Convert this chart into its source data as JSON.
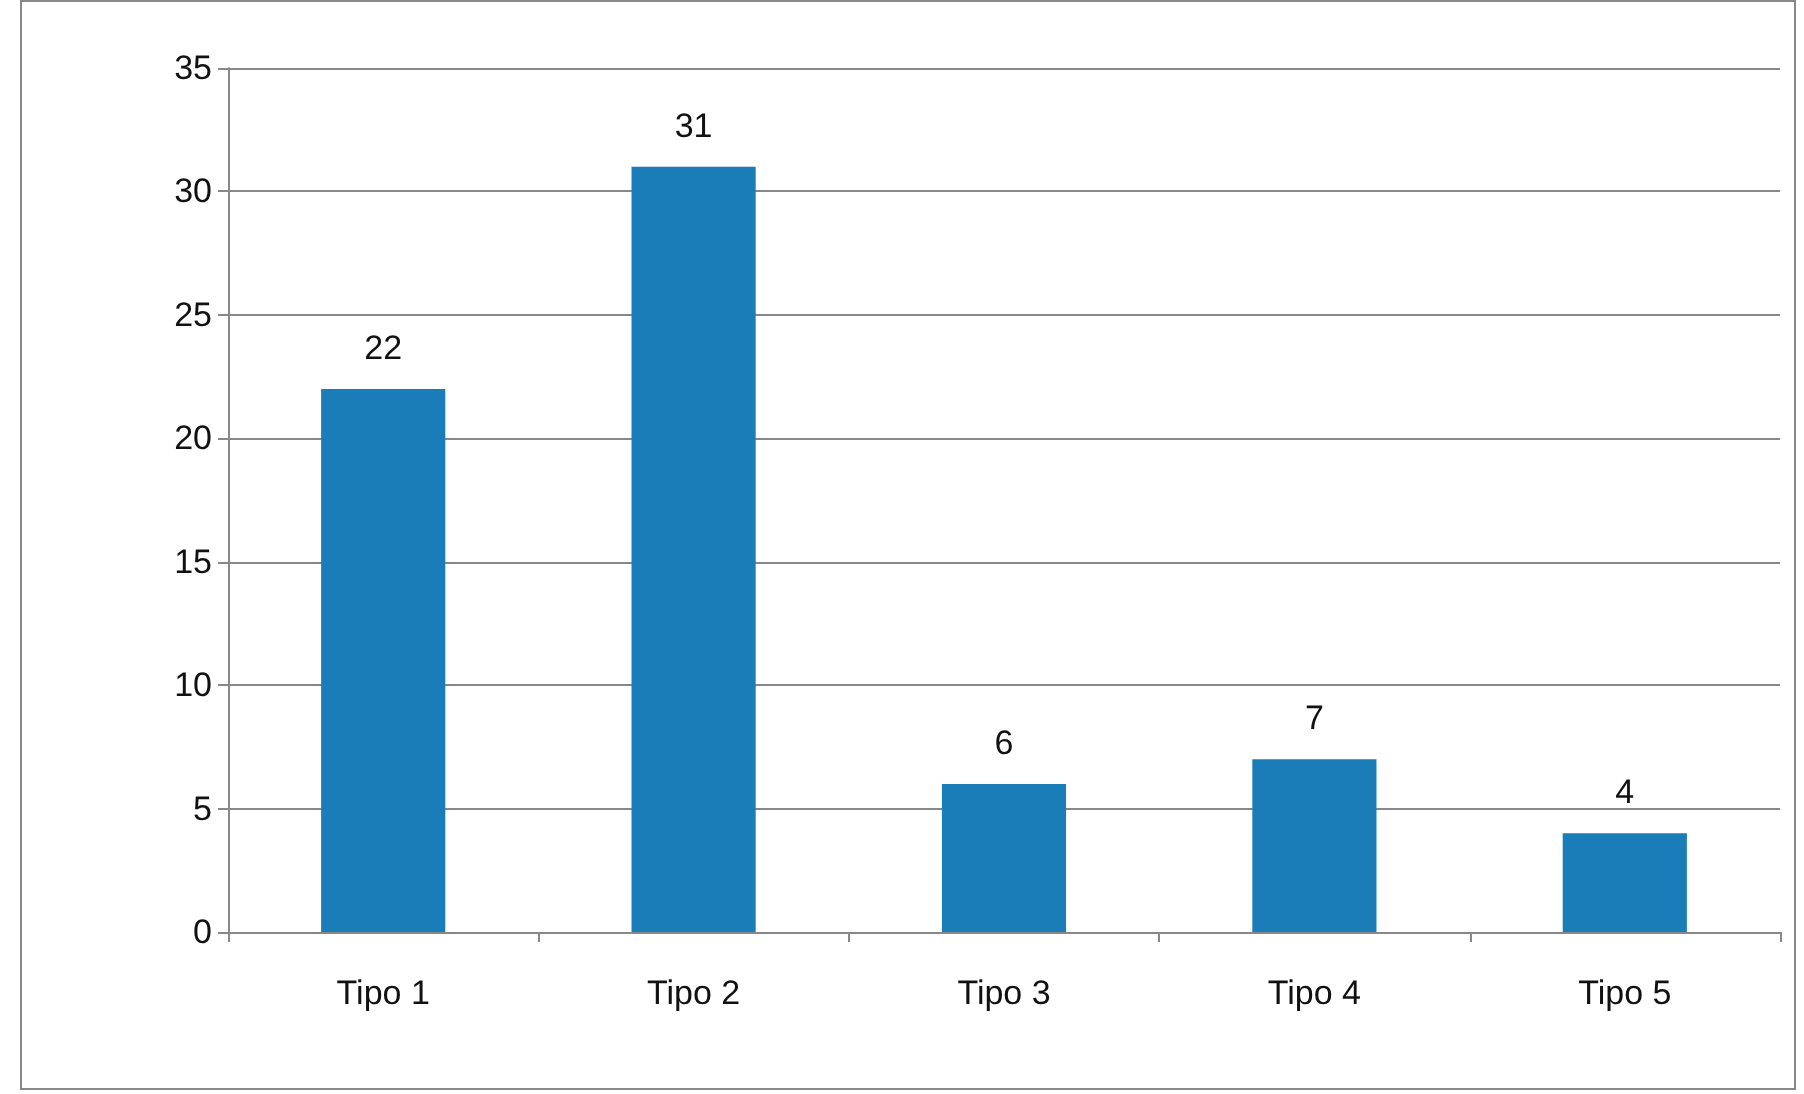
{
  "chart_data": {
    "type": "bar",
    "categories": [
      "Tipo 1",
      "Tipo 2",
      "Tipo 3",
      "Tipo 4",
      "Tipo 5"
    ],
    "values": [
      22,
      31,
      6,
      7,
      4
    ],
    "color": "#1a7db8",
    "ylim": [
      0,
      35
    ],
    "yticks": [
      0,
      5,
      10,
      15,
      20,
      25,
      30,
      35
    ],
    "grid": "y",
    "data_labels": true
  }
}
